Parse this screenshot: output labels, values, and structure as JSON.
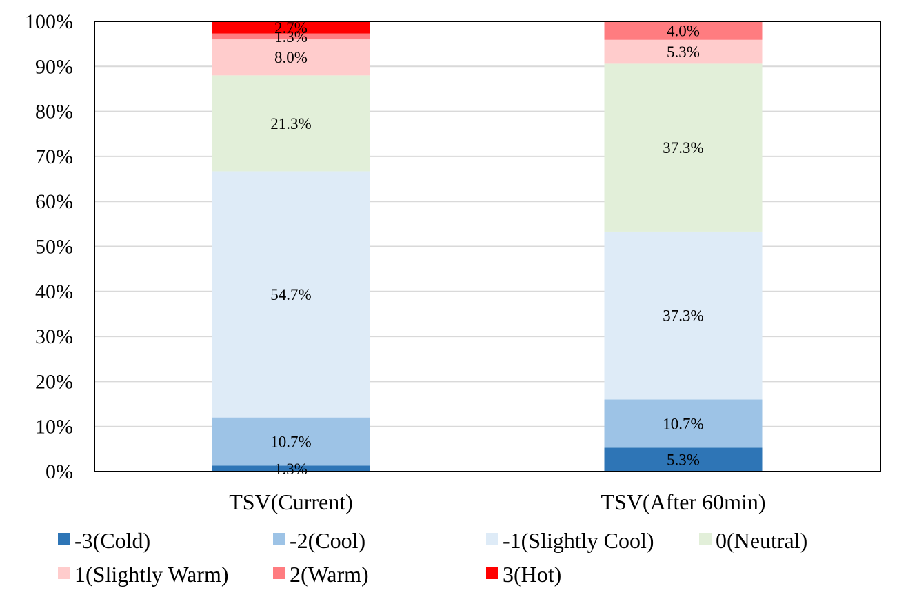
{
  "chart_data": {
    "type": "bar",
    "stacked": true,
    "title": "",
    "xlabel": "",
    "ylabel": "",
    "ylim": [
      0,
      100
    ],
    "y_ticks": [
      "0%",
      "10%",
      "20%",
      "30%",
      "40%",
      "50%",
      "60%",
      "70%",
      "80%",
      "90%",
      "100%"
    ],
    "categories": [
      "TSV(Current)",
      "TSV(After 60min)"
    ],
    "series": [
      {
        "name": "-3(Cold)",
        "color": "#2e75b6",
        "values": [
          1.3,
          5.3
        ],
        "labels": [
          "1.3%",
          "5.3%"
        ]
      },
      {
        "name": "-2(Cool)",
        "color": "#9dc3e6",
        "values": [
          10.7,
          10.7
        ],
        "labels": [
          "10.7%",
          "10.7%"
        ]
      },
      {
        "name": "-1(Slightly Cool)",
        "color": "#deebf7",
        "values": [
          54.7,
          37.3
        ],
        "labels": [
          "54.7%",
          "37.3%"
        ]
      },
      {
        "name": "0(Neutral)",
        "color": "#e2efd9",
        "values": [
          21.3,
          37.3
        ],
        "labels": [
          "21.3%",
          "37.3%"
        ]
      },
      {
        "name": "1(Slightly Warm)",
        "color": "#ffcccc",
        "values": [
          8.0,
          5.3
        ],
        "labels": [
          "8.0%",
          "5.3%"
        ]
      },
      {
        "name": "2(Warm)",
        "color": "#ff7c80",
        "values": [
          1.3,
          4.0
        ],
        "labels": [
          "1.3%",
          "4.0%"
        ]
      },
      {
        "name": "3(Hot)",
        "color": "#ff0000",
        "values": [
          2.7,
          0
        ],
        "labels": [
          "2.7%",
          ""
        ]
      }
    ],
    "grid": true,
    "legend_position": "bottom"
  }
}
